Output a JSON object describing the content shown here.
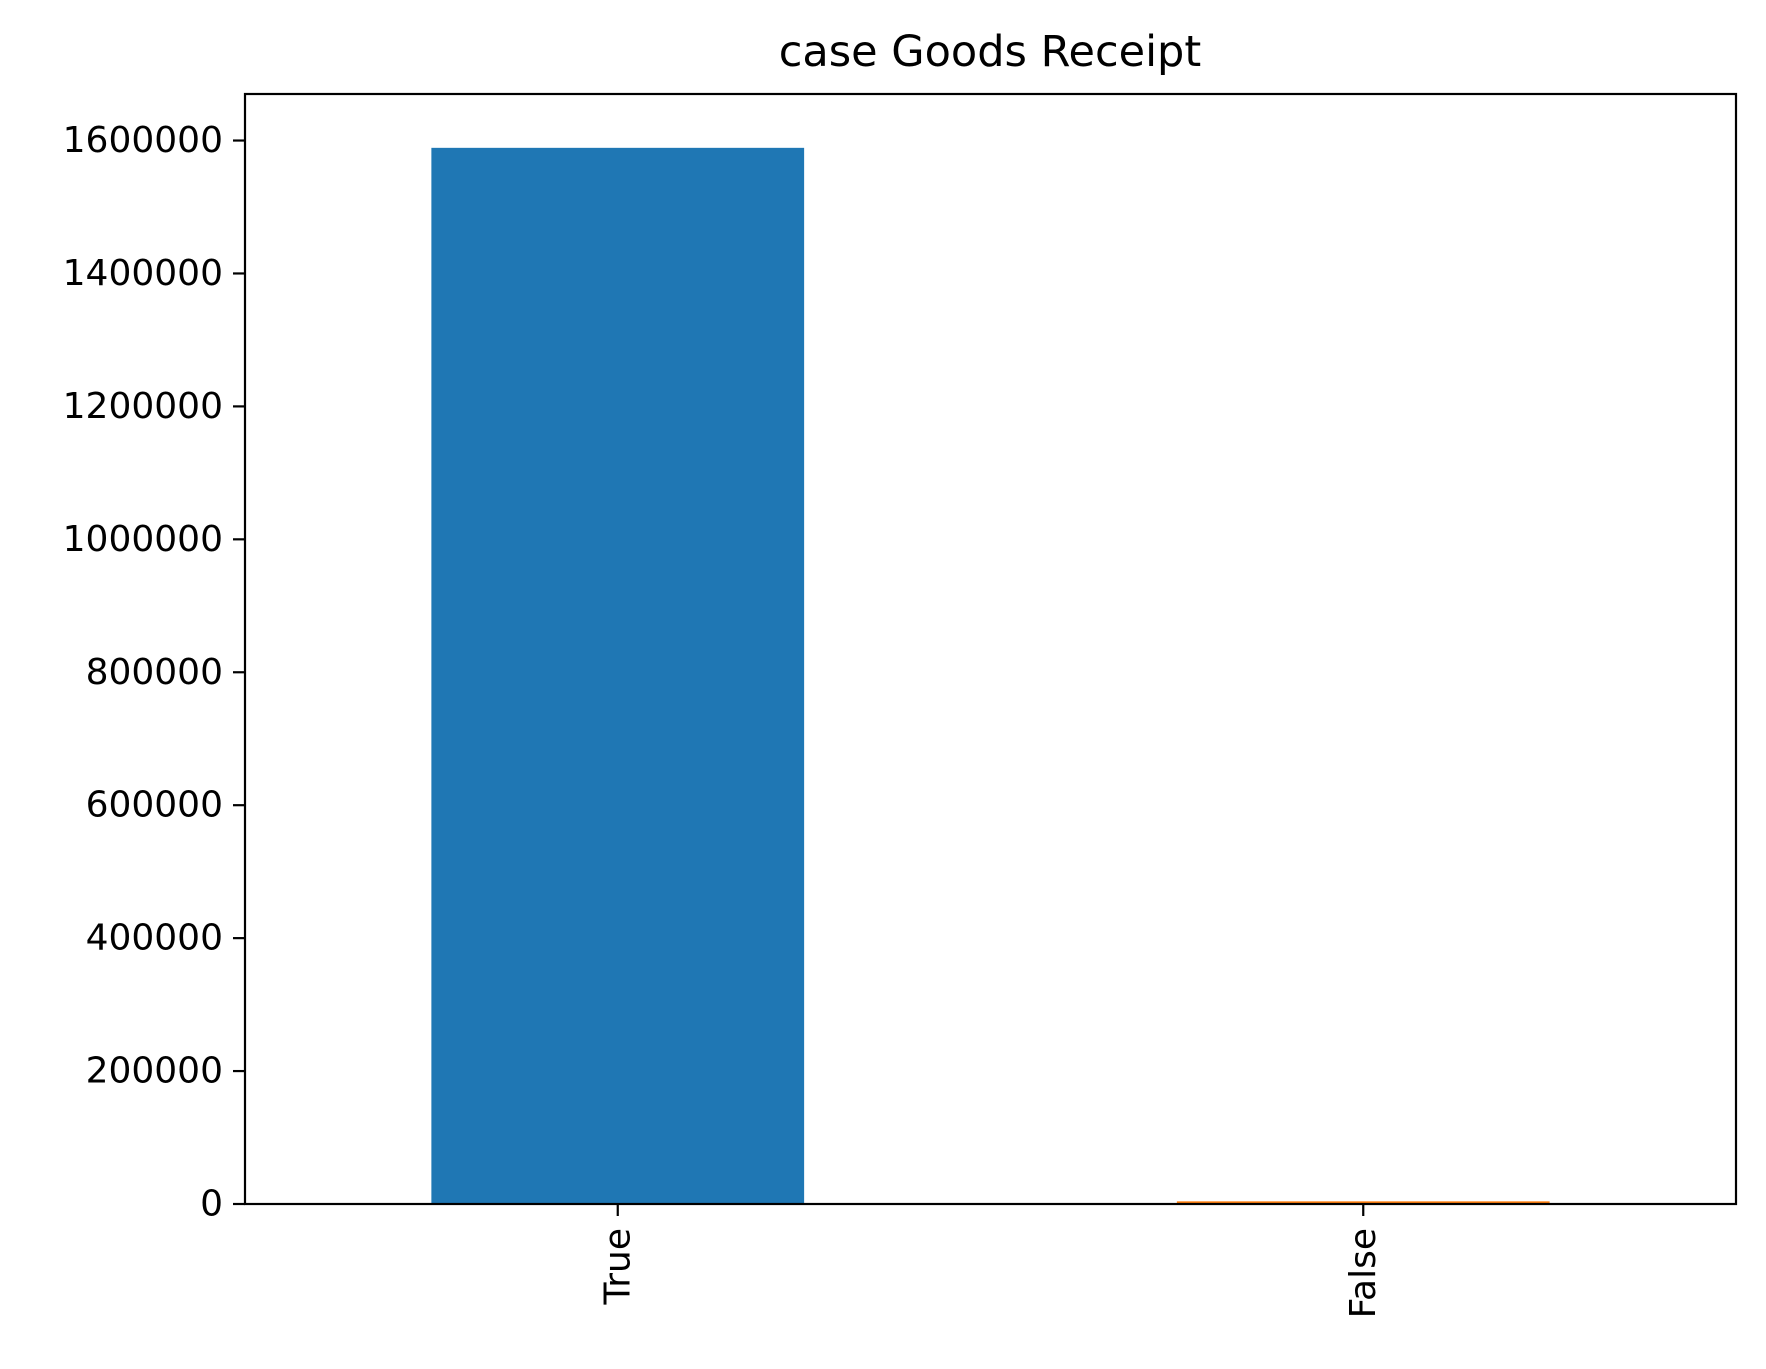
{
  "chart_data": {
    "type": "bar",
    "title": "case Goods Receipt",
    "xlabel": "",
    "ylabel": "",
    "categories": [
      "True",
      "False"
    ],
    "values": [
      1589000,
      4000
    ],
    "colors": [
      "#1f77b4",
      "#ff7f0e"
    ],
    "ylim": [
      0,
      1670000
    ],
    "yticks": [
      0,
      200000,
      400000,
      600000,
      800000,
      1000000,
      1200000,
      1400000,
      1600000
    ],
    "ytick_labels": [
      "0",
      "200000",
      "400000",
      "600000",
      "800000",
      "1000000",
      "1200000",
      "1400000",
      "1600000"
    ],
    "grid": false,
    "legend": "none"
  }
}
